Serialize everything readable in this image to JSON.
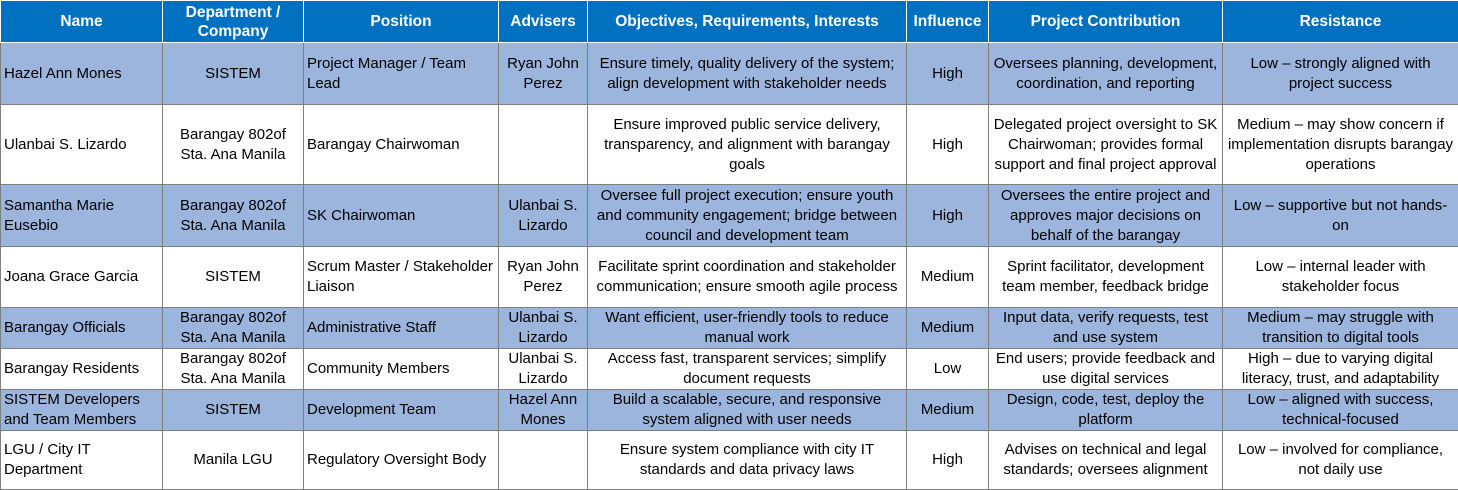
{
  "headers": [
    "Name",
    "Department / Company",
    "Position",
    "Advisers",
    "Objectives, Requirements, Interests",
    "Influence",
    "Project Contribution",
    "Resistance"
  ],
  "rows": [
    {
      "name": "Hazel Ann Mones",
      "dept": "SISTEM",
      "position": "Project Manager / Team Lead",
      "advisers": "Ryan John Perez",
      "objectives": "Ensure timely, quality delivery of the system; align development with stakeholder needs",
      "influence": "High",
      "contribution": "Oversees planning, development, coordination, and reporting",
      "resistance": "Low – strongly aligned with project success"
    },
    {
      "name": "Ulanbai S. Lizardo",
      "dept": "Barangay 802of Sta. Ana Manila",
      "position": "Barangay Chairwoman",
      "advisers": "",
      "objectives": "Ensure improved public service delivery, transparency, and alignment with barangay goals",
      "influence": "High",
      "contribution": "Delegated project oversight to SK Chairwoman; provides formal support and final project approval",
      "resistance": "Medium – may show concern if implementation disrupts barangay operations"
    },
    {
      "name": "Samantha Marie Eusebio",
      "dept": "Barangay 802of Sta. Ana Manila",
      "position": "SK Chairwoman",
      "advisers": "Ulanbai S. Lizardo",
      "objectives": "Oversee full project execution; ensure youth and community engagement; bridge between council and development team",
      "influence": "High",
      "contribution": "Oversees the entire project and approves major decisions on behalf of the barangay",
      "resistance": "Low – supportive but not hands-on"
    },
    {
      "name": "Joana Grace Garcia",
      "dept": "SISTEM",
      "position": "Scrum Master / Stakeholder Liaison",
      "advisers": "Ryan John Perez",
      "objectives": "Facilitate sprint coordination and stakeholder communication; ensure smooth agile process",
      "influence": "Medium",
      "contribution": "Sprint facilitator, development team member, feedback bridge",
      "resistance": "Low – internal leader with stakeholder focus"
    },
    {
      "name": "Barangay Officials",
      "dept": "Barangay 802of Sta. Ana Manila",
      "position": "Administrative Staff",
      "advisers": "Ulanbai S. Lizardo",
      "objectives": "Want efficient, user-friendly tools to reduce manual work",
      "influence": "Medium",
      "contribution": "Input data, verify requests, test and use system",
      "resistance": "Medium – may struggle with transition to digital tools"
    },
    {
      "name": "Barangay Residents",
      "dept": "Barangay 802of Sta. Ana Manila",
      "position": "Community Members",
      "advisers": "Ulanbai S. Lizardo",
      "objectives": "Access fast, transparent services; simplify document requests",
      "influence": "Low",
      "contribution": "End users; provide feedback and use digital services",
      "resistance": "High – due to varying digital literacy, trust, and adaptability"
    },
    {
      "name": "SISTEM Developers and Team Members",
      "dept": "SISTEM",
      "position": "Development Team",
      "advisers": "Hazel Ann Mones",
      "objectives": "Build a scalable, secure, and responsive system aligned with user needs",
      "influence": "Medium",
      "contribution": "Design, code, test, deploy the platform",
      "resistance": "Low – aligned with success, technical-focused"
    },
    {
      "name": "LGU / City IT Department",
      "dept": "Manila LGU",
      "position": "Regulatory Oversight Body",
      "advisers": "",
      "objectives": "Ensure system compliance with city IT standards and data privacy laws",
      "influence": "High",
      "contribution": "Advises on technical and legal standards; oversees alignment",
      "resistance": "Low – involved for compliance, not daily use"
    }
  ]
}
